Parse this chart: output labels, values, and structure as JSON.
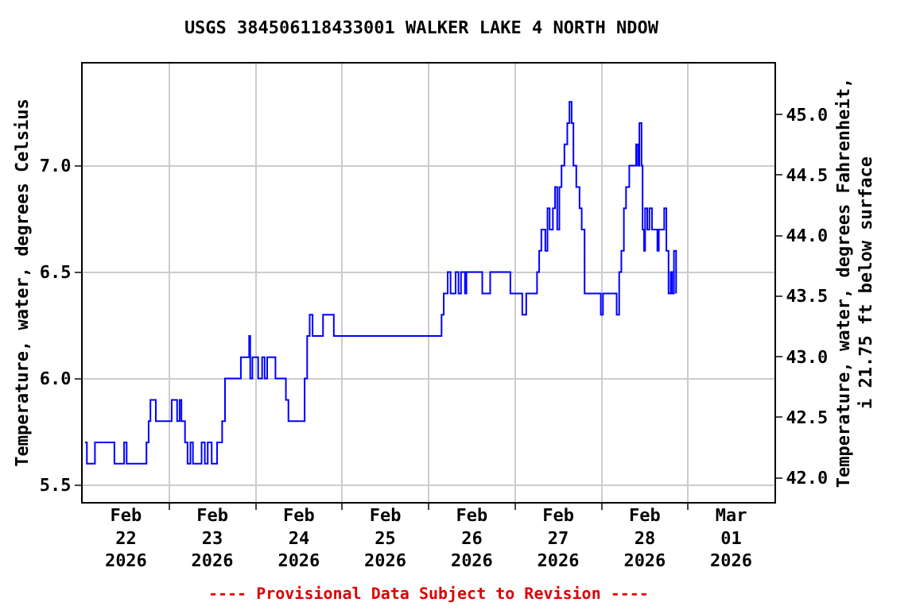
{
  "chart_data": {
    "type": "step",
    "title": "USGS 384506118433001 WALKER LAKE 4 NORTH NDOW",
    "ylabel": "Temperature, water, degrees Celsius",
    "y2label": "Temperature, water, degrees Fahrenheit,\ni 21.75 ft below surface",
    "annotations": [
      "---- Provisional Data Subject to Revision ----"
    ],
    "x": [
      "2026-02-22T00:40",
      "2026-02-22T01:10",
      "2026-02-22T03:24",
      "2026-02-22T08:48",
      "2026-02-22T11:30",
      "2026-02-22T12:12",
      "2026-02-22T17:42",
      "2026-02-22T18:18",
      "2026-02-22T18:48",
      "2026-02-22T20:18",
      "2026-02-23T00:42",
      "2026-02-23T02:12",
      "2026-02-23T02:54",
      "2026-02-23T03:24",
      "2026-02-23T04:24",
      "2026-02-23T05:06",
      "2026-02-23T05:54",
      "2026-02-23T06:36",
      "2026-02-23T09:00",
      "2026-02-23T09:54",
      "2026-02-23T10:42",
      "2026-02-23T11:48",
      "2026-02-23T13:18",
      "2026-02-23T14:42",
      "2026-02-23T15:30",
      "2026-02-23T19:54",
      "2026-02-23T22:12",
      "2026-02-23T22:30",
      "2026-02-23T23:06",
      "2026-02-24T00:42",
      "2026-02-24T01:48",
      "2026-02-24T02:30",
      "2026-02-24T03:12",
      "2026-02-24T05:30",
      "2026-02-24T08:24",
      "2026-02-24T09:06",
      "2026-02-24T13:36",
      "2026-02-24T14:18",
      "2026-02-24T15:00",
      "2026-02-24T15:48",
      "2026-02-24T18:42",
      "2026-02-24T21:42",
      "2026-02-26T03:36",
      "2026-02-26T04:12",
      "2026-02-26T05:18",
      "2026-02-26T06:06",
      "2026-02-26T07:30",
      "2026-02-26T08:18",
      "2026-02-26T09:00",
      "2026-02-26T10:06",
      "2026-02-26T10:30",
      "2026-02-26T14:54",
      "2026-02-26T17:06",
      "2026-02-26T22:42",
      "2026-02-27T02:00",
      "2026-02-27T03:06",
      "2026-02-27T06:06",
      "2026-02-27T06:42",
      "2026-02-27T07:18",
      "2026-02-27T08:24",
      "2026-02-27T09:00",
      "2026-02-27T09:36",
      "2026-02-27T10:30",
      "2026-02-27T11:06",
      "2026-02-27T11:42",
      "2026-02-27T12:18",
      "2026-02-27T12:54",
      "2026-02-27T13:42",
      "2026-02-27T14:30",
      "2026-02-27T15:06",
      "2026-02-27T15:42",
      "2026-02-27T16:12",
      "2026-02-27T17:00",
      "2026-02-27T17:54",
      "2026-02-27T18:30",
      "2026-02-27T19:18",
      "2026-02-27T23:48",
      "2026-02-28T00:24",
      "2026-02-28T04:12",
      "2026-02-28T04:54",
      "2026-02-28T05:30",
      "2026-02-28T06:12",
      "2026-02-28T06:48",
      "2026-02-28T07:42",
      "2026-02-28T09:36",
      "2026-02-28T10:06",
      "2026-02-28T10:30",
      "2026-02-28T11:06",
      "2026-02-28T11:24",
      "2026-02-28T11:48",
      "2026-02-28T12:06",
      "2026-02-28T12:42",
      "2026-02-28T13:18",
      "2026-02-28T14:00",
      "2026-02-28T15:30",
      "2026-02-28T15:54",
      "2026-02-28T17:24",
      "2026-02-28T18:00",
      "2026-02-28T18:36",
      "2026-02-28T19:12",
      "2026-02-28T19:36",
      "2026-02-28T20:06",
      "2026-02-28T20:42"
    ],
    "series": [
      {
        "color": "#0000ff",
        "values": [
          5.7,
          5.6,
          5.7,
          5.6,
          5.7,
          5.6,
          5.7,
          5.8,
          5.9,
          5.8,
          5.9,
          5.8,
          5.9,
          5.8,
          5.7,
          5.6,
          5.7,
          5.6,
          5.7,
          5.6,
          5.7,
          5.6,
          5.7,
          5.8,
          6.0,
          6.1,
          6.2,
          6.0,
          6.1,
          6.0,
          6.1,
          6.0,
          6.1,
          6.0,
          5.9,
          5.8,
          6.0,
          6.2,
          6.3,
          6.2,
          6.3,
          6.2,
          6.3,
          6.4,
          6.5,
          6.4,
          6.5,
          6.4,
          6.5,
          6.4,
          6.5,
          6.4,
          6.5,
          6.4,
          6.3,
          6.4,
          6.5,
          6.6,
          6.7,
          6.6,
          6.8,
          6.7,
          6.8,
          6.9,
          6.7,
          6.9,
          7.0,
          7.1,
          7.2,
          7.3,
          7.2,
          7.0,
          6.9,
          6.8,
          6.7,
          6.4,
          6.3,
          6.4,
          6.3,
          6.5,
          6.6,
          6.8,
          6.9,
          7.0,
          7.1,
          7.0,
          7.2,
          7.0,
          6.7,
          6.6,
          6.8,
          6.7,
          6.8,
          6.7,
          6.6,
          6.7,
          6.8,
          6.6,
          6.4,
          6.5,
          6.4,
          6.6,
          6.4
        ]
      }
    ],
    "xlim": [
      "2026-02-22T00:00",
      "2026-03-02T00:00"
    ],
    "xticks": [
      {
        "value": "2026-02-22T12:00",
        "label": "Feb\n22\n2026"
      },
      {
        "value": "2026-02-23T12:00",
        "label": "Feb\n23\n2026"
      },
      {
        "value": "2026-02-24T12:00",
        "label": "Feb\n24\n2026"
      },
      {
        "value": "2026-02-25T12:00",
        "label": "Feb\n25\n2026"
      },
      {
        "value": "2026-02-26T12:00",
        "label": "Feb\n26\n2026"
      },
      {
        "value": "2026-02-27T12:00",
        "label": "Feb\n27\n2026"
      },
      {
        "value": "2026-02-28T12:00",
        "label": "Feb\n28\n2026"
      },
      {
        "value": "2026-03-01T12:00",
        "label": "Mar\n01\n2026"
      },
      {
        "value": "2026-02-23T00:00",
        "label": null
      },
      {
        "value": "2026-02-24T00:00",
        "label": null
      },
      {
        "value": "2026-02-25T00:00",
        "label": null
      },
      {
        "value": "2026-02-26T00:00",
        "label": null
      },
      {
        "value": "2026-02-27T00:00",
        "label": null
      },
      {
        "value": "2026-02-28T00:00",
        "label": null
      },
      {
        "value": "2026-03-01T00:00",
        "label": null
      }
    ],
    "ylim": [
      5.42,
      7.48
    ],
    "yticks": [
      {
        "value": 5.5,
        "label": "5.5"
      },
      {
        "value": 6.0,
        "label": "6.0"
      },
      {
        "value": 6.5,
        "label": "6.5"
      },
      {
        "value": 7.0,
        "label": "7.0"
      }
    ],
    "y2lim": [
      41.8,
      45.42
    ],
    "y2ticks": [
      {
        "value": 42,
        "label": "42.0"
      },
      {
        "value": 42.5,
        "label": "42.5"
      },
      {
        "value": 43,
        "label": "43.0"
      },
      {
        "value": 43.5,
        "label": "43.5"
      },
      {
        "value": 44,
        "label": "44.0"
      },
      {
        "value": 44.5,
        "label": "44.5"
      },
      {
        "value": 45,
        "label": "45.0"
      }
    ],
    "grid": true,
    "line_style": "solid",
    "marker": "none"
  }
}
